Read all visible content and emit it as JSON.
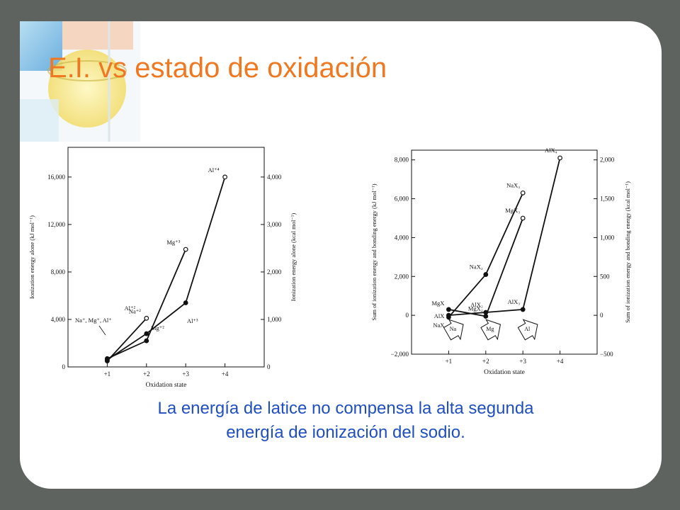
{
  "slide": {
    "title": "E.I. vs estado de oxidación",
    "caption_line1": "La energía de latice no compensa la alta segunda",
    "caption_line2": "energía de ionización del  sodio."
  },
  "chart_data": [
    {
      "type": "line",
      "xlabel": "Oxidation state",
      "ylabel": "Ionization energy alone (kJ mol⁻¹)",
      "y2label": "Ionization energy alone (kcal mol⁻¹)",
      "x_ticks": [
        "+1",
        "+2",
        "+3",
        "+4"
      ],
      "y_ticks": [
        "0",
        "4,000",
        "8,000",
        "12,000",
        "16,000"
      ],
      "y2_ticks": [
        "0",
        "1,000",
        "2,000",
        "3,000",
        "4,000"
      ],
      "xlim": [
        0,
        5
      ],
      "ylim": [
        0,
        18500
      ],
      "series": [
        {
          "name": "Na",
          "x": [
            1,
            2
          ],
          "y": [
            500,
            4100
          ],
          "end_label": "Na⁺²"
        },
        {
          "name": "Mg",
          "x": [
            1,
            2,
            3
          ],
          "y": [
            700,
            2200,
            9900
          ],
          "end_label": "Mg⁺³"
        },
        {
          "name": "Al",
          "x": [
            1,
            2,
            3,
            4
          ],
          "y": [
            600,
            2800,
            5400,
            16000
          ],
          "end_label": "Al⁺⁴"
        }
      ],
      "annotations": [
        "Na⁺, Mg⁺, Al⁺",
        "Al⁺²",
        "Mg⁺²",
        "Al⁺³"
      ]
    },
    {
      "type": "line",
      "xlabel": "Oxidation state",
      "ylabel": "Sum of ionization energy and bonding energy (kJ mol⁻¹)",
      "y2label": "Sum of ionization energy and bonding energy (kcal mol⁻¹)",
      "x_ticks": [
        "+1",
        "+2",
        "+3",
        "+4"
      ],
      "y_ticks": [
        "−2,000",
        "0",
        "2,000",
        "4,000",
        "6,000",
        "8,000"
      ],
      "y2_ticks": [
        "−500",
        "0",
        "500",
        "1,000",
        "1,500",
        "2,000"
      ],
      "xlim": [
        0,
        5
      ],
      "ylim": [
        -2000,
        8500
      ],
      "series": [
        {
          "name": "Na",
          "x": [
            1,
            2,
            3
          ],
          "y": [
            -100,
            2100,
            6300
          ],
          "point_labels": [
            "NaX",
            "NaX₂",
            "NaX₃"
          ]
        },
        {
          "name": "Mg",
          "x": [
            1,
            2,
            3
          ],
          "y": [
            300,
            -50,
            5000
          ],
          "point_labels": [
            "MgX",
            "MgX₂",
            "MgX₃"
          ]
        },
        {
          "name": "Al",
          "x": [
            1,
            2,
            3,
            4
          ],
          "y": [
            0,
            150,
            300,
            8100
          ],
          "point_labels": [
            "AlX",
            "AlX₂",
            "AlX₃",
            "AlX₄"
          ]
        }
      ],
      "arrow_labels": [
        "Na",
        "Mg",
        "Al"
      ]
    }
  ]
}
